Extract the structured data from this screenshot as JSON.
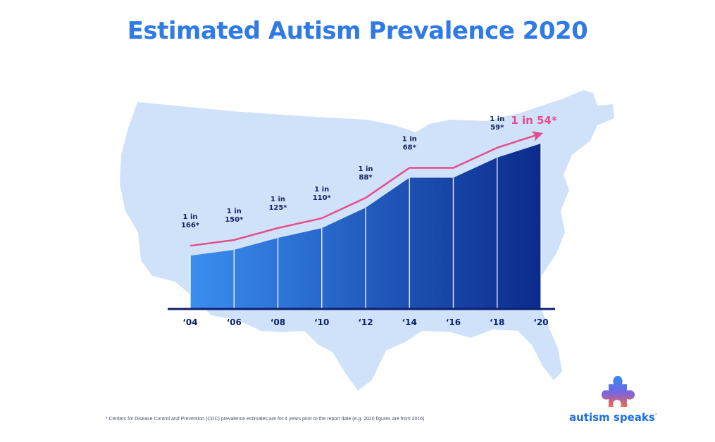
{
  "title": "Estimated Autism Prevalence 2020",
  "footnote": "* Centers for Disease Control and Prevention (CDC) prevalence estimates are for 4 years prior to the report date (e.g. 2020 figures are from 2016)",
  "logo": {
    "text": "autism speaks",
    "trademark": "·",
    "icon": "puzzle-piece-icon"
  },
  "colors": {
    "title": "#2f7ae5",
    "map": "#cfe2f9",
    "bar_light": "#3a8ef0",
    "bar_dark": "#0b2b8c",
    "trend": "#e64b8e",
    "axis": "#0d1f6e",
    "label": "#14225e",
    "logo_text": "#1f6fe0"
  },
  "chart_data": {
    "type": "area",
    "title": "Estimated Autism Prevalence 2020",
    "categories": [
      "‘04",
      "‘06",
      "‘08",
      "‘10",
      "‘12",
      "‘14",
      "‘16",
      "‘18",
      "‘20"
    ],
    "report_years": [
      2004,
      2006,
      2008,
      2010,
      2012,
      2014,
      2016,
      2018,
      2020
    ],
    "prevalence_one_in": [
      166,
      150,
      125,
      110,
      88,
      68,
      68,
      59,
      54
    ],
    "data_labels": [
      {
        "line1": "1 in",
        "line2": "166*"
      },
      {
        "line1": "1 in",
        "line2": "150*"
      },
      {
        "line1": "1 in",
        "line2": "125*"
      },
      {
        "line1": "1 in",
        "line2": "110*"
      },
      {
        "line1": "1 in",
        "line2": "88*"
      },
      {
        "line1": "1 in",
        "line2": "68*"
      },
      null,
      {
        "line1": "1 in",
        "line2": "59*"
      },
      null
    ],
    "highlight_label": "1 in 54*",
    "xlabel": "",
    "ylabel": "",
    "grid": false,
    "legend": "none"
  }
}
